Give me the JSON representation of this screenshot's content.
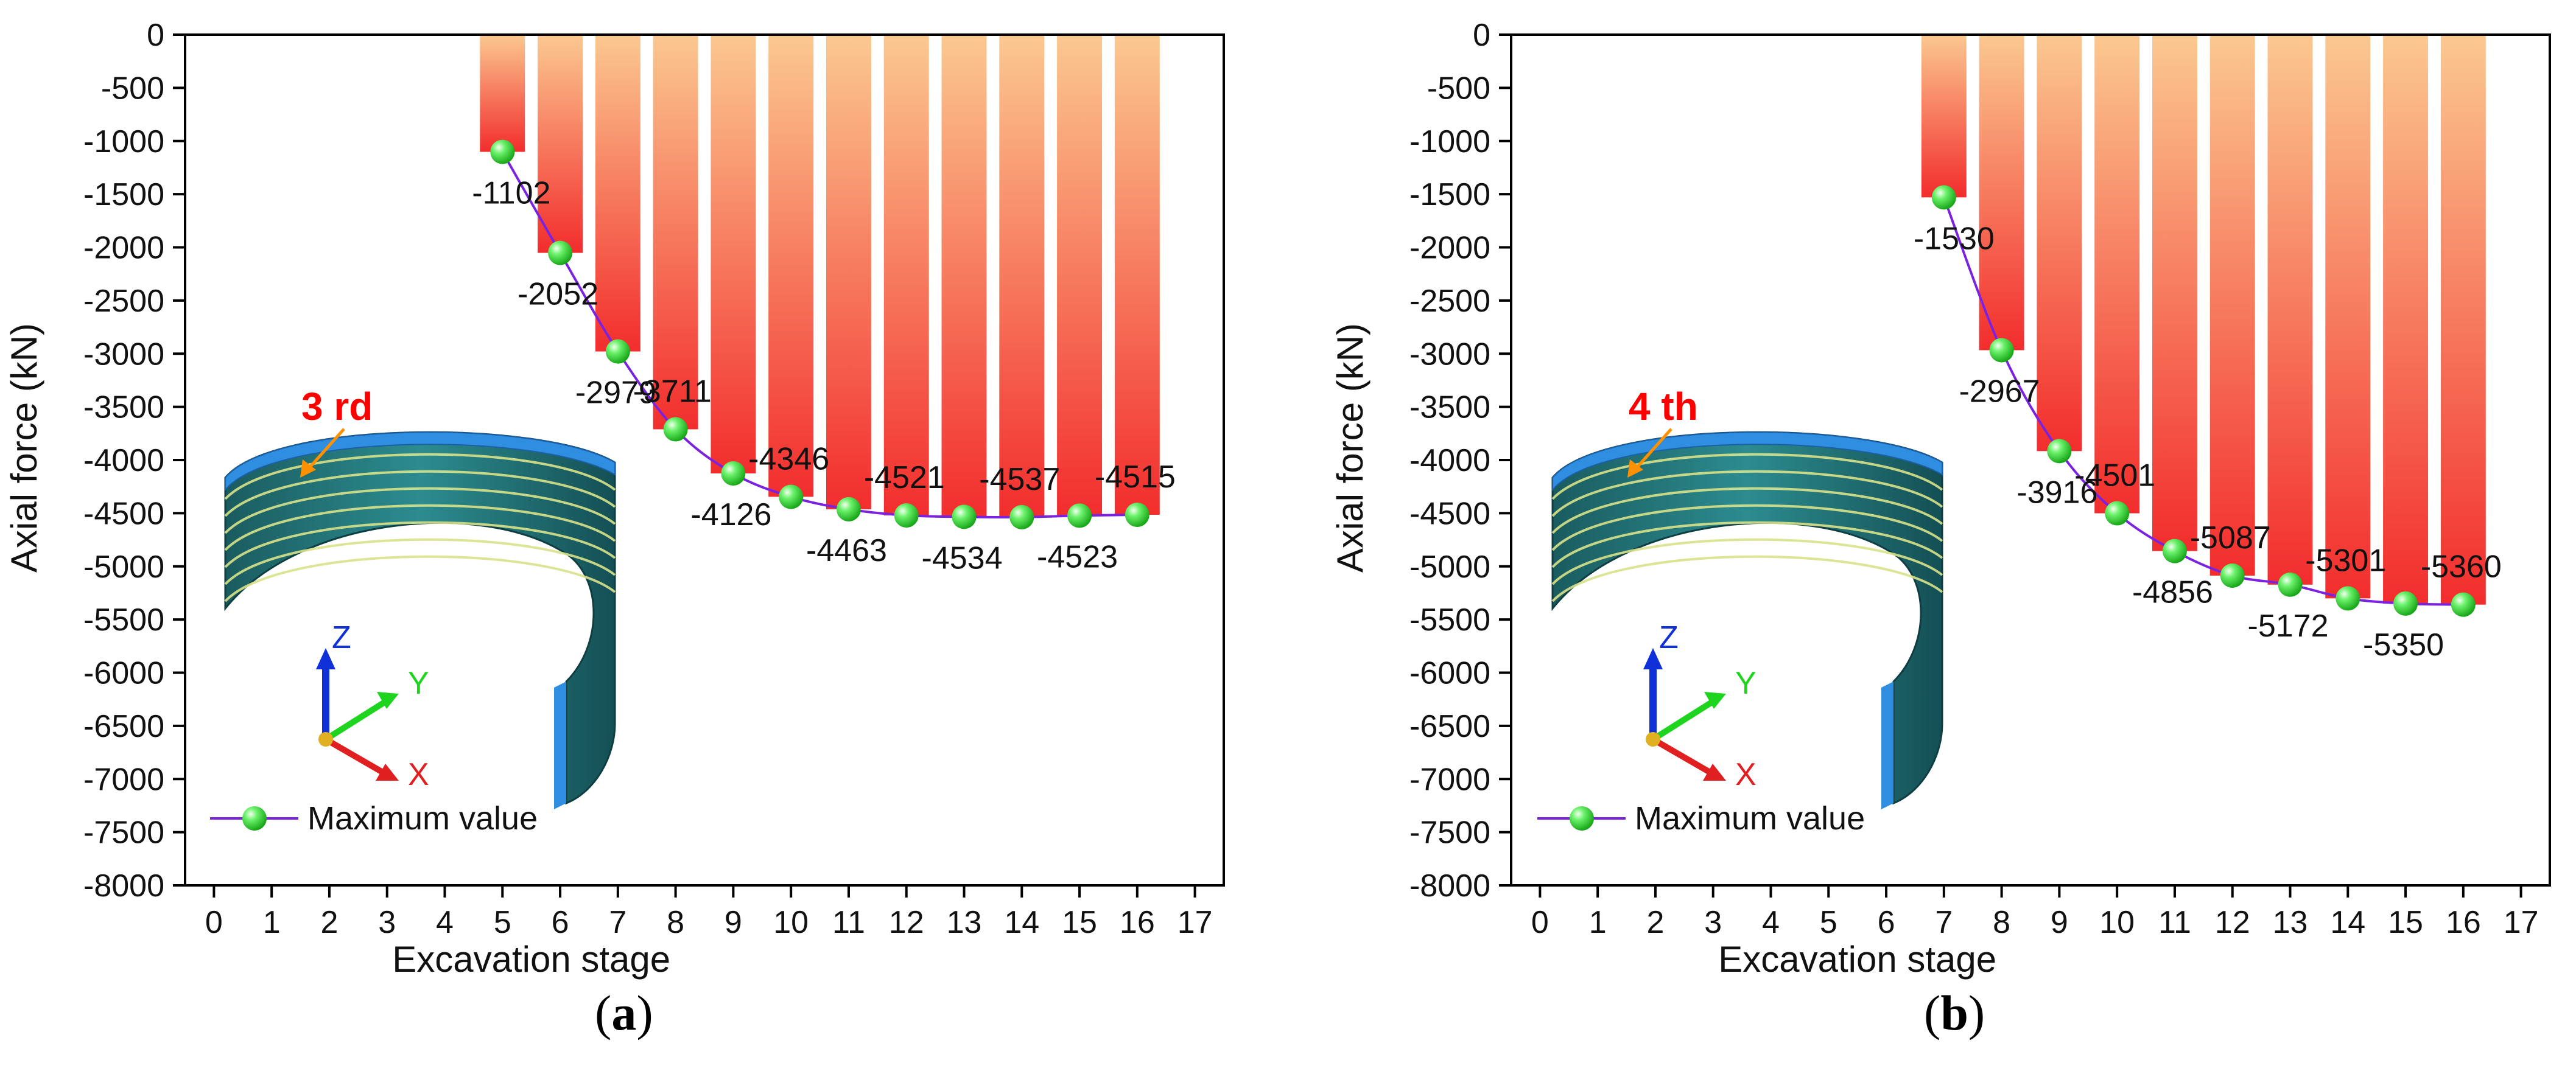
{
  "chart_data": [
    {
      "type": "bar",
      "panel_label": "(a)",
      "panel_letter": "a",
      "xlabel": "Excavation stage",
      "ylabel": "Axial force (kN)",
      "xlim": [
        -0.5,
        17.5
      ],
      "ylim": [
        -8000,
        0
      ],
      "xticks": [
        "0",
        "1",
        "2",
        "3",
        "4",
        "5",
        "6",
        "7",
        "8",
        "9",
        "10",
        "11",
        "12",
        "13",
        "14",
        "15",
        "16",
        "17"
      ],
      "yticks": [
        "0",
        "-500",
        "-1000",
        "-1500",
        "-2000",
        "-2500",
        "-3000",
        "-3500",
        "-4000",
        "-4500",
        "-5000",
        "-5500",
        "-6000",
        "-6500",
        "-7000",
        "-7500",
        "-8000"
      ],
      "categories": [
        5,
        6,
        7,
        8,
        9,
        10,
        11,
        12,
        13,
        14,
        15,
        16
      ],
      "values": [
        -1102,
        -2052,
        -2979,
        -3711,
        -4126,
        -4346,
        -4463,
        -4521,
        -4534,
        -4537,
        -4523,
        -4515
      ],
      "value_labels": [
        "-1102",
        "-2052",
        "-2979",
        "-3711",
        "-4126",
        "-4346",
        "-4463",
        "-4521",
        "-4534",
        "-4537",
        "-4523",
        "-4515"
      ],
      "label_positions": [
        "below",
        "below",
        "below",
        "above",
        "below",
        "above",
        "below",
        "above",
        "below",
        "above",
        "below",
        "above"
      ],
      "series_name": "Maximum value",
      "annotation": "3 rd",
      "axes_labels": {
        "x": "X",
        "y": "Y",
        "z": "Z"
      },
      "colors": {
        "bar_top": "#fbc890",
        "bar_bottom": "#f22d2d",
        "line": "#7b22e0",
        "marker": "#3de63d",
        "annotation": "#ff0000",
        "arrow": "#ff9000"
      }
    },
    {
      "type": "bar",
      "panel_label": "(b)",
      "panel_letter": "b",
      "xlabel": "Excavation stage",
      "ylabel": "Axial force (kN)",
      "xlim": [
        -0.5,
        17.5
      ],
      "ylim": [
        -8000,
        0
      ],
      "xticks": [
        "0",
        "1",
        "2",
        "3",
        "4",
        "5",
        "6",
        "7",
        "8",
        "9",
        "10",
        "11",
        "12",
        "13",
        "14",
        "15",
        "16",
        "17"
      ],
      "yticks": [
        "0",
        "-500",
        "-1000",
        "-1500",
        "-2000",
        "-2500",
        "-3000",
        "-3500",
        "-4000",
        "-4500",
        "-5000",
        "-5500",
        "-6000",
        "-6500",
        "-7000",
        "-7500",
        "-8000"
      ],
      "categories": [
        7,
        8,
        9,
        10,
        11,
        12,
        13,
        14,
        15,
        16
      ],
      "values": [
        -1530,
        -2967,
        -3916,
        -4501,
        -4856,
        -5087,
        -5172,
        -5301,
        -5350,
        -5360
      ],
      "value_labels": [
        "-1530",
        "-2967",
        "-3916",
        "-4501",
        "-4856",
        "-5087",
        "-5172",
        "-5301",
        "-5350",
        "-5360"
      ],
      "label_positions": [
        "below",
        "below",
        "below",
        "above",
        "below",
        "above",
        "below",
        "above",
        "below",
        "above"
      ],
      "series_name": "Maximum value",
      "annotation": "4 th",
      "axes_labels": {
        "x": "X",
        "y": "Y",
        "z": "Z"
      },
      "colors": {
        "bar_top": "#fbc890",
        "bar_bottom": "#f22d2d",
        "line": "#7b22e0",
        "marker": "#3de63d",
        "annotation": "#ff0000",
        "arrow": "#ff9000"
      }
    }
  ]
}
